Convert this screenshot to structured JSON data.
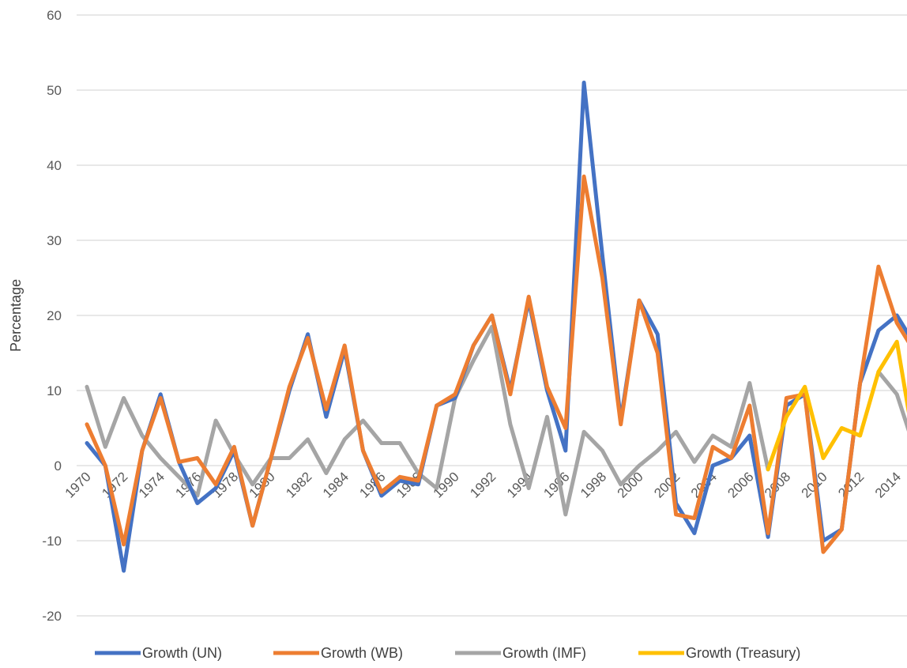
{
  "chart_data": {
    "type": "line",
    "ylabel": "Percentage",
    "xlabel": "",
    "ylim": [
      -20,
      60
    ],
    "yticks": [
      -20,
      -10,
      0,
      10,
      20,
      30,
      40,
      50,
      60
    ],
    "grid": true,
    "legend_position": "bottom",
    "x": [
      1970,
      1971,
      1972,
      1973,
      1974,
      1975,
      1976,
      1977,
      1978,
      1979,
      1980,
      1981,
      1982,
      1983,
      1984,
      1985,
      1986,
      1987,
      1988,
      1989,
      1990,
      1991,
      1992,
      1993,
      1994,
      1995,
      1996,
      1997,
      1998,
      1999,
      2000,
      2001,
      2002,
      2003,
      2004,
      2005,
      2006,
      2007,
      2008,
      2009,
      2010,
      2011,
      2012,
      2013,
      2014,
      2015
    ],
    "xtick_labels": [
      "1970",
      "1972",
      "1974",
      "1976",
      "1978",
      "1980",
      "1982",
      "1984",
      "1986",
      "1988",
      "1990",
      "1992",
      "1994",
      "1996",
      "1998",
      "2000",
      "2002",
      "2004",
      "2006",
      "2008",
      "2010",
      "2012",
      "2014"
    ],
    "series": [
      {
        "name": "Growth (UN)",
        "color": "#4472C4",
        "values": [
          3,
          0,
          -14,
          2,
          9.5,
          0.5,
          -5,
          -3,
          2,
          -8,
          1,
          10,
          17.5,
          6.5,
          15.5,
          2,
          -4,
          -2,
          -2.5,
          8,
          9,
          16,
          20,
          10,
          22,
          10,
          2,
          51,
          28,
          6,
          22,
          17.5,
          -5,
          -9,
          0,
          1,
          4,
          -9.5,
          8,
          9.5,
          -10,
          -8.5,
          11,
          18,
          20,
          16
        ]
      },
      {
        "name": "Growth (WB)",
        "color": "#ED7D31",
        "values": [
          5.5,
          0,
          -10.5,
          2,
          9,
          0.5,
          1,
          -2.5,
          2.5,
          -8,
          1,
          10.5,
          17,
          7.5,
          16,
          2,
          -3.5,
          -1.5,
          -2,
          8,
          9.5,
          16,
          20,
          9.5,
          22.5,
          10.5,
          5,
          38.5,
          25,
          5.5,
          22,
          15,
          -6.5,
          -7,
          2.5,
          1,
          8,
          -9,
          9,
          9.5,
          -11.5,
          -8.5,
          11,
          26.5,
          19,
          15
        ]
      },
      {
        "name": "Growth (IMF)",
        "color": "#A5A5A5",
        "values": [
          10.5,
          2.5,
          9,
          4,
          1,
          -1.5,
          -4,
          6,
          1.5,
          -2.5,
          1,
          1,
          3.5,
          -1,
          3.5,
          6,
          3,
          3,
          -1,
          -3,
          9,
          14,
          18.5,
          5.5,
          -3,
          6.5,
          -6.5,
          4.5,
          2,
          -2.5,
          0,
          2,
          4.5,
          0.5,
          4,
          2.5,
          11,
          -0.5,
          null,
          null,
          null,
          null,
          null,
          12.5,
          9.5,
          2
        ]
      },
      {
        "name": "Growth (Treasury)",
        "color": "#FFC000",
        "values": [
          null,
          null,
          null,
          null,
          null,
          null,
          null,
          null,
          null,
          null,
          null,
          null,
          null,
          null,
          null,
          null,
          null,
          null,
          null,
          null,
          null,
          null,
          null,
          null,
          null,
          null,
          null,
          null,
          null,
          null,
          null,
          null,
          null,
          null,
          null,
          null,
          null,
          -0.5,
          6.5,
          10.5,
          1,
          5,
          4,
          12.5,
          16.5,
          2
        ]
      }
    ]
  }
}
